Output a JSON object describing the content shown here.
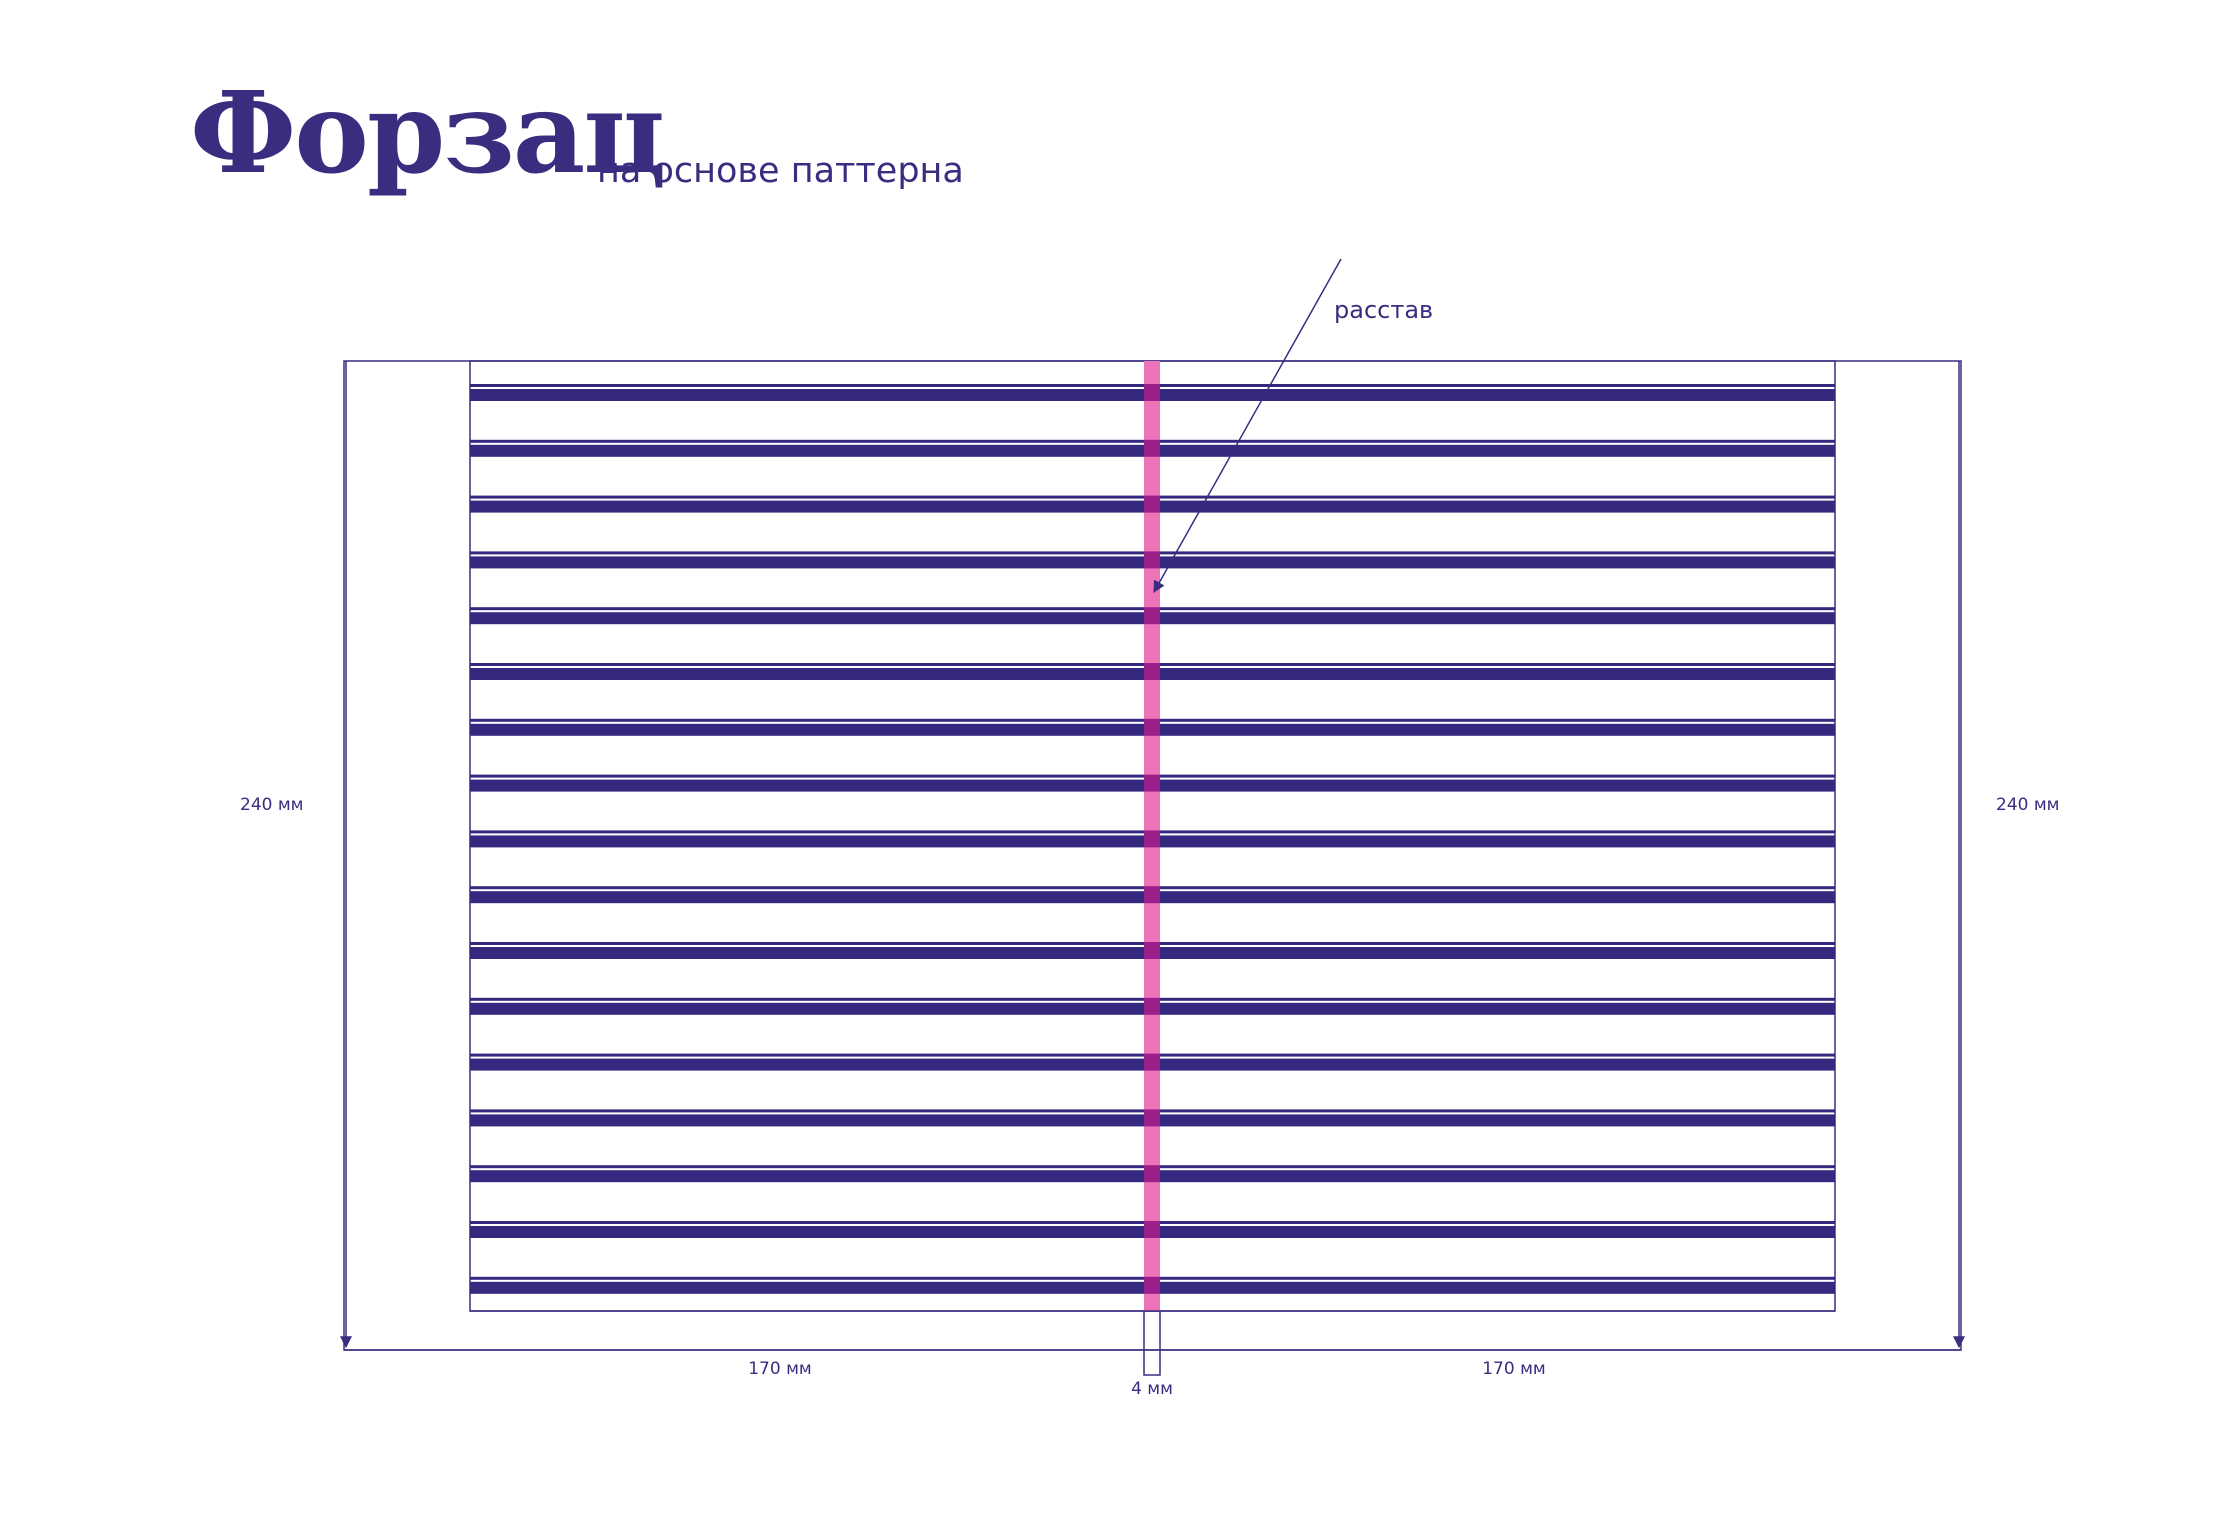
{
  "header": {
    "title": "Форзац",
    "subtitle": "на основе паттерна"
  },
  "annotations": {
    "spine_label": "расстав",
    "height_left": "240 мм",
    "height_right": "240 мм",
    "width_left_page": "170 мм",
    "width_right_page": "170 мм",
    "spine_width": "4 мм"
  },
  "pattern": {
    "stripe_count": 17
  },
  "colors": {
    "ink": "#3a2d80",
    "stripe": "#34287f",
    "spine": "#ee74b9",
    "spine_overlap": "#9b1f8a"
  }
}
